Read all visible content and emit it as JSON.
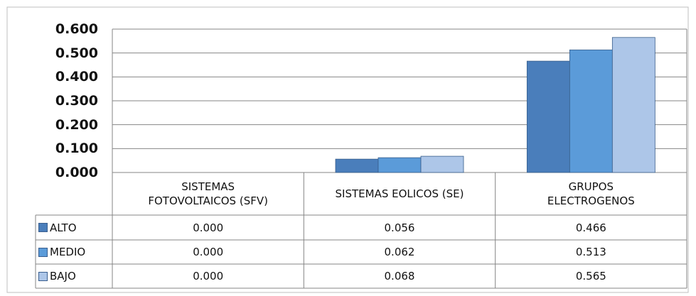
{
  "chart_data": {
    "type": "bar",
    "categories": [
      "SISTEMAS FOTOVOLTAICOS (SFV)",
      "SISTEMAS EOLICOS (SE)",
      "GRUPOS ELECTROGENOS"
    ],
    "series": [
      {
        "name": "ALTO",
        "color": "#4a7ebb",
        "values": [
          0.0,
          0.056,
          0.466
        ],
        "value_labels": [
          "0.000",
          "0.056",
          "0.466"
        ]
      },
      {
        "name": "MEDIO",
        "color": "#5b9bd9",
        "values": [
          0.0,
          0.062,
          0.513
        ],
        "value_labels": [
          "0.000",
          "0.062",
          "0.513"
        ]
      },
      {
        "name": "BAJO",
        "color": "#adc6e8",
        "values": [
          0.0,
          0.068,
          0.565
        ],
        "value_labels": [
          "0.000",
          "0.068",
          "0.565"
        ]
      }
    ],
    "ylim": [
      0,
      0.6
    ],
    "yticks": [
      {
        "value": 0,
        "label": "0.000"
      },
      {
        "value": 0.1,
        "label": "0.100"
      },
      {
        "value": 0.2,
        "label": "0.200"
      },
      {
        "value": 0.3,
        "label": "0.300"
      },
      {
        "value": 0.4,
        "label": "0.400"
      },
      {
        "value": 0.5,
        "label": "0.500"
      },
      {
        "value": 0.6,
        "label": "0.600"
      }
    ],
    "grid": true
  }
}
